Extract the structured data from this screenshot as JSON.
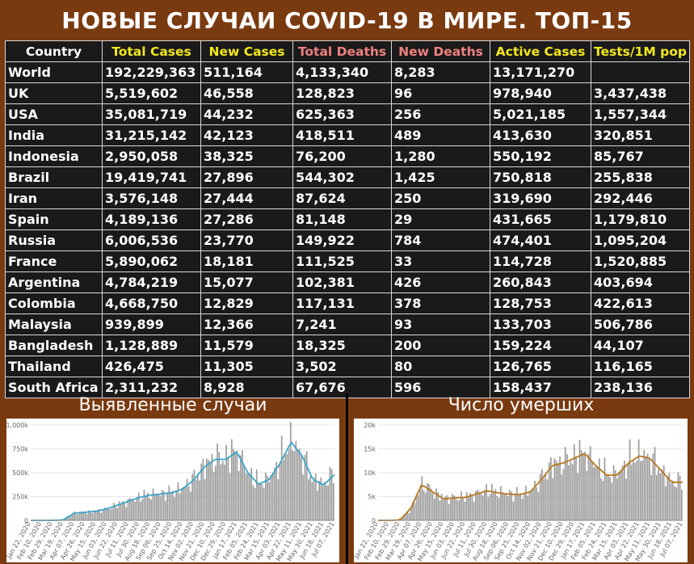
{
  "title": "НОВЫЕ СЛУЧАИ COVID-19 В МИРЕ. ТОП-15",
  "headers": [
    "Country",
    "Total Cases",
    "New Cases",
    "Total Deaths",
    "New Deaths",
    "Active Cases",
    "Tests/1M pop"
  ],
  "header_colors": [
    "#ffffff",
    "#f2e81c",
    "#f2e81c",
    "#f08080",
    "#f08080",
    "#f2e81c",
    "#f2e81c"
  ],
  "rows": [
    [
      "World",
      "192,229,363",
      "511,164",
      "4,133,340",
      "8,283",
      "13,171,270",
      ""
    ],
    [
      "UK",
      "5,519,602",
      "46,558",
      "128,823",
      "96",
      "978,940",
      "3,437,438"
    ],
    [
      "USA",
      "35,081,719",
      "44,232",
      "625,363",
      "256",
      "5,021,185",
      "1,557,344"
    ],
    [
      "India",
      "31,215,142",
      "42,123",
      "418,511",
      "489",
      "413,630",
      "320,851"
    ],
    [
      "Indonesia",
      "2,950,058",
      "38,325",
      "76,200",
      "1,280",
      "550,192",
      "85,767"
    ],
    [
      "Brazil",
      "19,419,741",
      "27,896",
      "544,302",
      "1,425",
      "750,818",
      "255,838"
    ],
    [
      "Iran",
      "3,576,148",
      "27,444",
      "87,624",
      "250",
      "319,690",
      "292,446"
    ],
    [
      "Spain",
      "4,189,136",
      "27,286",
      "81,148",
      "29",
      "431,665",
      "1,179,810"
    ],
    [
      "Russia",
      "6,006,536",
      "23,770",
      "149,922",
      "784",
      "474,401",
      "1,095,204"
    ],
    [
      "France",
      "5,890,062",
      "18,181",
      "111,525",
      "33",
      "114,728",
      "1,520,885"
    ],
    [
      "Argentina",
      "4,784,219",
      "15,077",
      "102,381",
      "426",
      "260,843",
      "403,694"
    ],
    [
      "Colombia",
      "4,668,750",
      "12,829",
      "117,131",
      "378",
      "128,753",
      "422,613"
    ],
    [
      "Malaysia",
      "939,899",
      "12,366",
      "7,241",
      "93",
      "133,703",
      "506,786"
    ],
    [
      "Bangladesh",
      "1,128,889",
      "11,579",
      "18,325",
      "200",
      "159,224",
      "44,107"
    ],
    [
      "Thailand",
      "426,475",
      "11,305",
      "3,502",
      "80",
      "126,765",
      "116,165"
    ],
    [
      "South Africa",
      "2,311,232",
      "8,928",
      "67,676",
      "596",
      "158,437",
      "238,136"
    ]
  ],
  "panels": {
    "cases_title": "Выявленные случаи",
    "deaths_title": "Число умерших"
  },
  "colors": {
    "background": "#7a3a10",
    "table_bg": "#1a1a1a",
    "header_yellow": "#f2e81c",
    "header_pink": "#f08080",
    "cases_line": "#3aa6c8",
    "deaths_line": "#b8781e",
    "bar": "#9e9e9e"
  },
  "chart_data": [
    {
      "type": "bar",
      "name_ru": "Выявленные случаи",
      "ylim": [
        0,
        1000000
      ],
      "yticks": [
        "0",
        "250k",
        "500k",
        "750k",
        "1,000k"
      ],
      "xticks": [
        "Jan 22, 2020",
        "Feb 10, 2020",
        "Feb 29, 2020",
        "Mar 19, 2020",
        "Apr 07, 2020",
        "Apr 26, 2020",
        "May 15, 2020",
        "Jun 03, 2020",
        "Jun 22, 2020",
        "Jul 11, 2020",
        "Jul 30, 2020",
        "Aug 18, 2020",
        "Sep 06, 2020",
        "Sep 25, 2020",
        "Oct 14, 2020",
        "Nov 02, 2020",
        "Nov 21, 2020",
        "Dec 10, 2020",
        "Dec 29, 2020",
        "Jan 17, 2021",
        "Feb 05, 2021",
        "Feb 24, 2021",
        "Mar 15, 2021",
        "Apr 03, 2021",
        "Apr 22, 2021",
        "May 11, 2021",
        "May 30, 2021",
        "Jun 18, 2021",
        "Jul 07, 2021"
      ],
      "trend": [
        0,
        0,
        0,
        5000,
        75000,
        85000,
        95000,
        120000,
        160000,
        200000,
        240000,
        265000,
        275000,
        290000,
        330000,
        420000,
        560000,
        640000,
        640000,
        720000,
        500000,
        380000,
        430000,
        600000,
        820000,
        680000,
        430000,
        370000,
        480000
      ]
    },
    {
      "type": "bar",
      "name_ru": "Число умерших",
      "ylim": [
        0,
        20000
      ],
      "yticks": [
        "0",
        "5k",
        "10k",
        "15k",
        "20k"
      ],
      "xticks": [
        "Jan 22, 2020",
        "Feb 10, 2020",
        "Feb 29, 2020",
        "Mar 19, 2020",
        "Apr 07, 2020",
        "Apr 26, 2020",
        "May 15, 2020",
        "Jun 03, 2020",
        "Jun 22, 2020",
        "Jul 11, 2020",
        "Jul 30, 2020",
        "Aug 18, 2020",
        "Sep 06, 2020",
        "Sep 25, 2020",
        "Oct 14, 2020",
        "Nov 02, 2020",
        "Nov 21, 2020",
        "Dec 10, 2020",
        "Dec 29, 2020",
        "Jan 17, 2021",
        "Feb 05, 2021",
        "Feb 24, 2021",
        "Mar 15, 2021",
        "Apr 03, 2021",
        "Apr 22, 2021",
        "May 11, 2021",
        "May 30, 2021",
        "Jun 18, 2021",
        "Jul 07, 2021"
      ],
      "trend": [
        0,
        0,
        100,
        2500,
        7500,
        6000,
        4500,
        4700,
        4800,
        5500,
        6200,
        5800,
        5500,
        5400,
        6000,
        8500,
        11500,
        12000,
        13000,
        14000,
        11500,
        9500,
        9500,
        12000,
        13500,
        13000,
        10500,
        8000,
        8000
      ]
    }
  ]
}
